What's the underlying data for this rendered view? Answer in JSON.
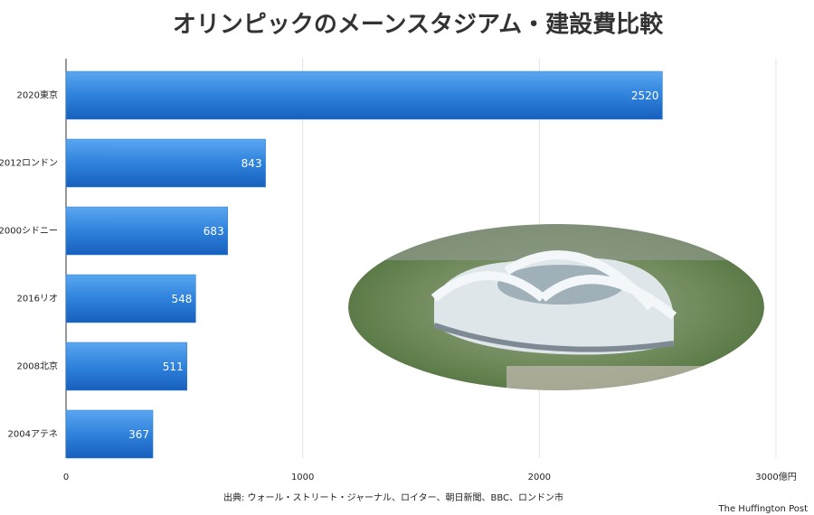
{
  "chart_data": {
    "type": "bar",
    "orientation": "horizontal",
    "title": "オリンピックのメーンスタジアム・建設費比較",
    "categories": [
      "2020東京",
      "2012ロンドン",
      "2000シドニー",
      "2016リオ",
      "2008北京",
      "2004アテネ"
    ],
    "values": [
      2520,
      843,
      683,
      548,
      511,
      367
    ],
    "color": "#2a7ad6",
    "xlim": [
      0,
      3000
    ],
    "xticks": [
      0,
      1000,
      2000,
      {
        "value": 3000,
        "label": "3000億円"
      }
    ],
    "grid": true,
    "source": "出典: ウォール・ストリート・ジャーナル、ロイター、朝日新聞、BBC、ロンドン市",
    "credit": "The Huffington Post"
  }
}
